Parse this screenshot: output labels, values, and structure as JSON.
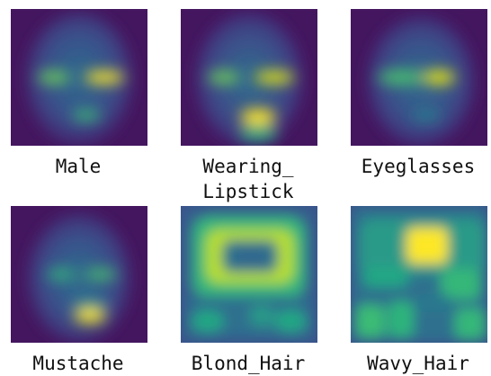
{
  "panels": [
    {
      "label": "Male"
    },
    {
      "label": "Wearing_\nLipstick"
    },
    {
      "label": "Eyeglasses"
    },
    {
      "label": "Mustache"
    },
    {
      "label": "Blond_Hair"
    },
    {
      "label": "Wavy_Hair"
    }
  ],
  "colormap": {
    "name": "viridis",
    "low": "#440154",
    "mid": "#21918c",
    "high": "#fde725"
  }
}
